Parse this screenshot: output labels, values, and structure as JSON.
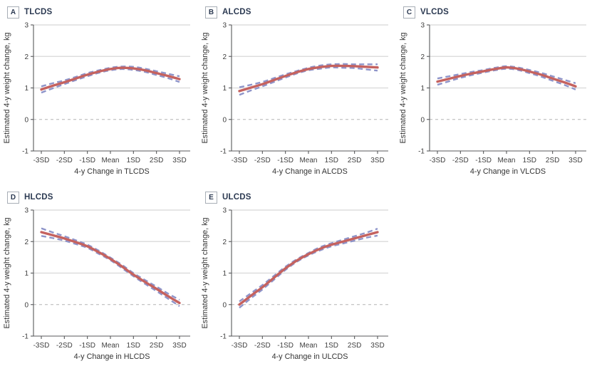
{
  "figure": {
    "background": "#ffffff",
    "shared_ylabel": "Estimated 4-y weight change, kg"
  },
  "colors": {
    "estimate_line": "#c5625f",
    "ci_line": "#8e94c9",
    "gridline": "#dedede",
    "zero_line": "#b3b3b3",
    "axis_line": "#58595b",
    "tick_text": "#3f3f3f",
    "title_text": "#2c3a52"
  },
  "chart_data": [
    {
      "type": "line",
      "panel": "A",
      "title": "TLCDS",
      "xlabel": "4-y Change in TLCDS",
      "ylabel": "Estimated 4-y weight change, kg",
      "x_ticks": [
        "-3SD",
        "-2SD",
        "-1SD",
        "Mean",
        "1SD",
        "2SD",
        "3SD"
      ],
      "x_tick_sd": [
        -3,
        -2,
        -1,
        0,
        1,
        2,
        3
      ],
      "y_ticks": [
        3,
        2,
        1,
        0,
        -1
      ],
      "ylim": [
        -1,
        3
      ],
      "gridlines_at": [
        1,
        2,
        3
      ],
      "zero_line_style": "dashed",
      "x_sd": [
        -3,
        -2.5,
        -2,
        -1.5,
        -1,
        -0.5,
        0,
        0.5,
        1,
        1.5,
        2,
        2.5,
        3
      ],
      "estimate": [
        0.95,
        1.07,
        1.18,
        1.3,
        1.42,
        1.52,
        1.6,
        1.64,
        1.62,
        1.56,
        1.47,
        1.38,
        1.28
      ],
      "ci_half": [
        0.1,
        0.08,
        0.06,
        0.05,
        0.05,
        0.04,
        0.04,
        0.04,
        0.05,
        0.05,
        0.06,
        0.07,
        0.09
      ]
    },
    {
      "type": "line",
      "panel": "B",
      "title": "ALCDS",
      "xlabel": "4-y Change in ALCDS",
      "ylabel": "Estimated 4-y weight change, kg",
      "x_ticks": [
        "-3SD",
        "-2SD",
        "-1SD",
        "Mean",
        "1SD",
        "2SD",
        "3SD"
      ],
      "x_tick_sd": [
        -3,
        -2,
        -1,
        0,
        1,
        2,
        3
      ],
      "y_ticks": [
        3,
        2,
        1,
        0,
        -1
      ],
      "ylim": [
        -1,
        3
      ],
      "gridlines_at": [
        1,
        2,
        3
      ],
      "zero_line_style": "dashed",
      "x_sd": [
        -3,
        -2.5,
        -2,
        -1.5,
        -1,
        -0.5,
        0,
        0.5,
        1,
        1.5,
        2,
        2.5,
        3
      ],
      "estimate": [
        0.9,
        1.01,
        1.12,
        1.25,
        1.38,
        1.5,
        1.6,
        1.66,
        1.7,
        1.7,
        1.69,
        1.67,
        1.65
      ],
      "ci_half": [
        0.12,
        0.09,
        0.07,
        0.06,
        0.05,
        0.04,
        0.04,
        0.05,
        0.05,
        0.06,
        0.06,
        0.08,
        0.1
      ]
    },
    {
      "type": "line",
      "panel": "C",
      "title": "VLCDS",
      "xlabel": "4-y Change in VLCDS",
      "ylabel": "Estimated 4-y weight change, kg",
      "x_ticks": [
        "-3SD",
        "-2SD",
        "-1SD",
        "Mean",
        "1SD",
        "2SD",
        "3SD"
      ],
      "x_tick_sd": [
        -3,
        -2,
        -1,
        0,
        1,
        2,
        3
      ],
      "y_ticks": [
        3,
        2,
        1,
        0,
        -1
      ],
      "ylim": [
        -1,
        3
      ],
      "gridlines_at": [
        1,
        2,
        3
      ],
      "zero_line_style": "dashed",
      "x_sd": [
        -3,
        -2.5,
        -2,
        -1.5,
        -1,
        -0.5,
        0,
        0.5,
        1,
        1.5,
        2,
        2.5,
        3
      ],
      "estimate": [
        1.2,
        1.29,
        1.38,
        1.46,
        1.53,
        1.6,
        1.65,
        1.61,
        1.52,
        1.42,
        1.3,
        1.18,
        1.05
      ],
      "ci_half": [
        0.1,
        0.08,
        0.06,
        0.05,
        0.04,
        0.04,
        0.04,
        0.04,
        0.05,
        0.06,
        0.07,
        0.08,
        0.1
      ]
    },
    {
      "type": "line",
      "panel": "D",
      "title": "HLCDS",
      "xlabel": "4-y Change in HLCDS",
      "ylabel": "Estimated 4-y weight change, kg",
      "x_ticks": [
        "-3SD",
        "-2SD",
        "-1SD",
        "Mean",
        "1SD",
        "2SD",
        "3SD"
      ],
      "x_tick_sd": [
        -3,
        -2,
        -1,
        0,
        1,
        2,
        3
      ],
      "y_ticks": [
        3,
        2,
        1,
        0,
        -1
      ],
      "ylim": [
        -1,
        3
      ],
      "gridlines_at": [
        1,
        2,
        3
      ],
      "zero_line_style": "dashed",
      "x_sd": [
        -3,
        -2.5,
        -2,
        -1.5,
        -1,
        -0.5,
        0,
        0.5,
        1,
        1.5,
        2,
        2.5,
        3
      ],
      "estimate": [
        2.3,
        2.2,
        2.1,
        1.98,
        1.85,
        1.66,
        1.45,
        1.21,
        0.95,
        0.72,
        0.5,
        0.27,
        0.05
      ],
      "ci_half": [
        0.12,
        0.09,
        0.07,
        0.06,
        0.05,
        0.05,
        0.04,
        0.05,
        0.05,
        0.06,
        0.07,
        0.08,
        0.1
      ]
    },
    {
      "type": "line",
      "panel": "E",
      "title": "ULCDS",
      "xlabel": "4-y Change in ULCDS",
      "ylabel": "Estimated 4-y weight change, kg",
      "x_ticks": [
        "-3SD",
        "-2SD",
        "-1SD",
        "Mean",
        "1SD",
        "2SD",
        "3SD"
      ],
      "x_tick_sd": [
        -3,
        -2,
        -1,
        0,
        1,
        2,
        3
      ],
      "y_ticks": [
        3,
        2,
        1,
        0,
        -1
      ],
      "ylim": [
        -1,
        3
      ],
      "gridlines_at": [
        1,
        2,
        3
      ],
      "zero_line_style": "dashed",
      "x_sd": [
        -3,
        -2.5,
        -2,
        -1.5,
        -1,
        -0.5,
        0,
        0.5,
        1,
        1.5,
        2,
        2.5,
        3
      ],
      "estimate": [
        0.0,
        0.28,
        0.55,
        0.85,
        1.15,
        1.4,
        1.6,
        1.77,
        1.9,
        2.0,
        2.1,
        2.2,
        2.3
      ],
      "ci_half": [
        0.1,
        0.08,
        0.07,
        0.06,
        0.05,
        0.04,
        0.04,
        0.05,
        0.05,
        0.06,
        0.07,
        0.08,
        0.11
      ]
    }
  ]
}
